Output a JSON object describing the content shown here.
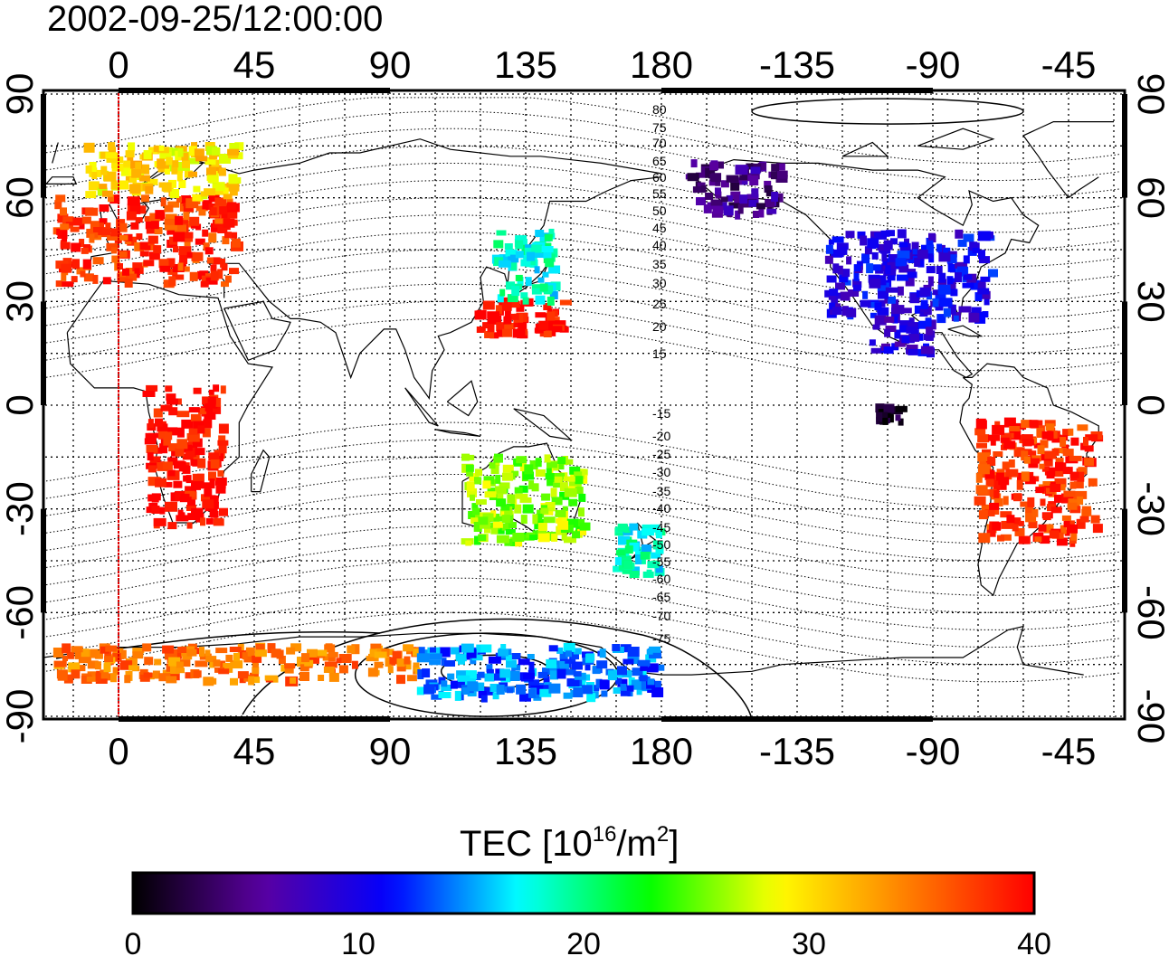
{
  "title": "2002-09-25/12:00:00",
  "map": {
    "lon_ticks": [
      "0",
      "45",
      "90",
      "135",
      "180",
      "-135",
      "-90",
      "-45"
    ],
    "lat_ticks": [
      "90",
      "60",
      "30",
      "0",
      "-30",
      "-60",
      "-90"
    ],
    "contour_labels": [
      "80",
      "75",
      "70",
      "65",
      "60",
      "55",
      "50",
      "45",
      "40",
      "35",
      "30",
      "25",
      "20",
      "15",
      "-15",
      "-20",
      "-25",
      "-30",
      "-35",
      "-40",
      "-45",
      "-50",
      "-55",
      "-60",
      "-65",
      "-70",
      "-75"
    ],
    "grid": true,
    "meridian_line_color": "#ff0000"
  },
  "colorbar": {
    "label_main": "TEC  [10",
    "label_sup1": "16",
    "label_mid": "/m",
    "label_sup2": "2",
    "label_end": "]",
    "ticks": [
      "0",
      "10",
      "20",
      "30",
      "40"
    ],
    "range": [
      0,
      40
    ],
    "colors": [
      "#000000",
      "#5a00a0",
      "#0000ff",
      "#00ffff",
      "#00ff00",
      "#ffff00",
      "#ff8000",
      "#ff0000"
    ]
  },
  "chart_data": {
    "type": "heatmap",
    "title": "2002-09-25/12:00:00",
    "colorbar_label": "TEC  [10^16/m^2]",
    "value_range": [
      0,
      40
    ],
    "x_ticks": [
      "0",
      "45",
      "90",
      "135",
      "180",
      "-135",
      "-90",
      "-45"
    ],
    "y_ticks": [
      "90",
      "60",
      "30",
      "0",
      "-30",
      "-60",
      "-90"
    ],
    "regions": [
      {
        "lon_range": [
          -20,
          40
        ],
        "lat_range": [
          35,
          60
        ],
        "tec": 38
      },
      {
        "lon_range": [
          -10,
          40
        ],
        "lat_range": [
          60,
          75
        ],
        "tec": 30
      },
      {
        "lon_range": [
          120,
          150
        ],
        "lat_range": [
          20,
          30
        ],
        "tec": 40
      },
      {
        "lon_range": [
          125,
          145
        ],
        "lat_range": [
          30,
          50
        ],
        "tec": 18
      },
      {
        "lon_range": [
          -125,
          -70
        ],
        "lat_range": [
          25,
          50
        ],
        "tec": 10
      },
      {
        "lon_range": [
          -110,
          -90
        ],
        "lat_range": [
          15,
          25
        ],
        "tec": 9
      },
      {
        "lon_range": [
          -170,
          -140
        ],
        "lat_range": [
          55,
          70
        ],
        "tec": 5
      },
      {
        "lon_range": [
          -75,
          -35
        ],
        "lat_range": [
          -40,
          -5
        ],
        "tec": 38
      },
      {
        "lon_range": [
          165,
          180
        ],
        "lat_range": [
          -50,
          -35
        ],
        "tec": 18
      },
      {
        "lon_range": [
          115,
          155
        ],
        "lat_range": [
          -40,
          -15
        ],
        "tec": 26
      },
      {
        "lon_range": [
          10,
          35
        ],
        "lat_range": [
          -35,
          5
        ],
        "tec": 40
      },
      {
        "lon_range": [
          -20,
          100
        ],
        "lat_range": [
          -80,
          -70
        ],
        "tec": 35
      },
      {
        "lon_range": [
          100,
          180
        ],
        "lat_range": [
          -85,
          -70
        ],
        "tec": 14
      },
      {
        "lon_range": [
          -110,
          -100
        ],
        "lat_range": [
          -5,
          0
        ],
        "tec": 1
      }
    ]
  }
}
